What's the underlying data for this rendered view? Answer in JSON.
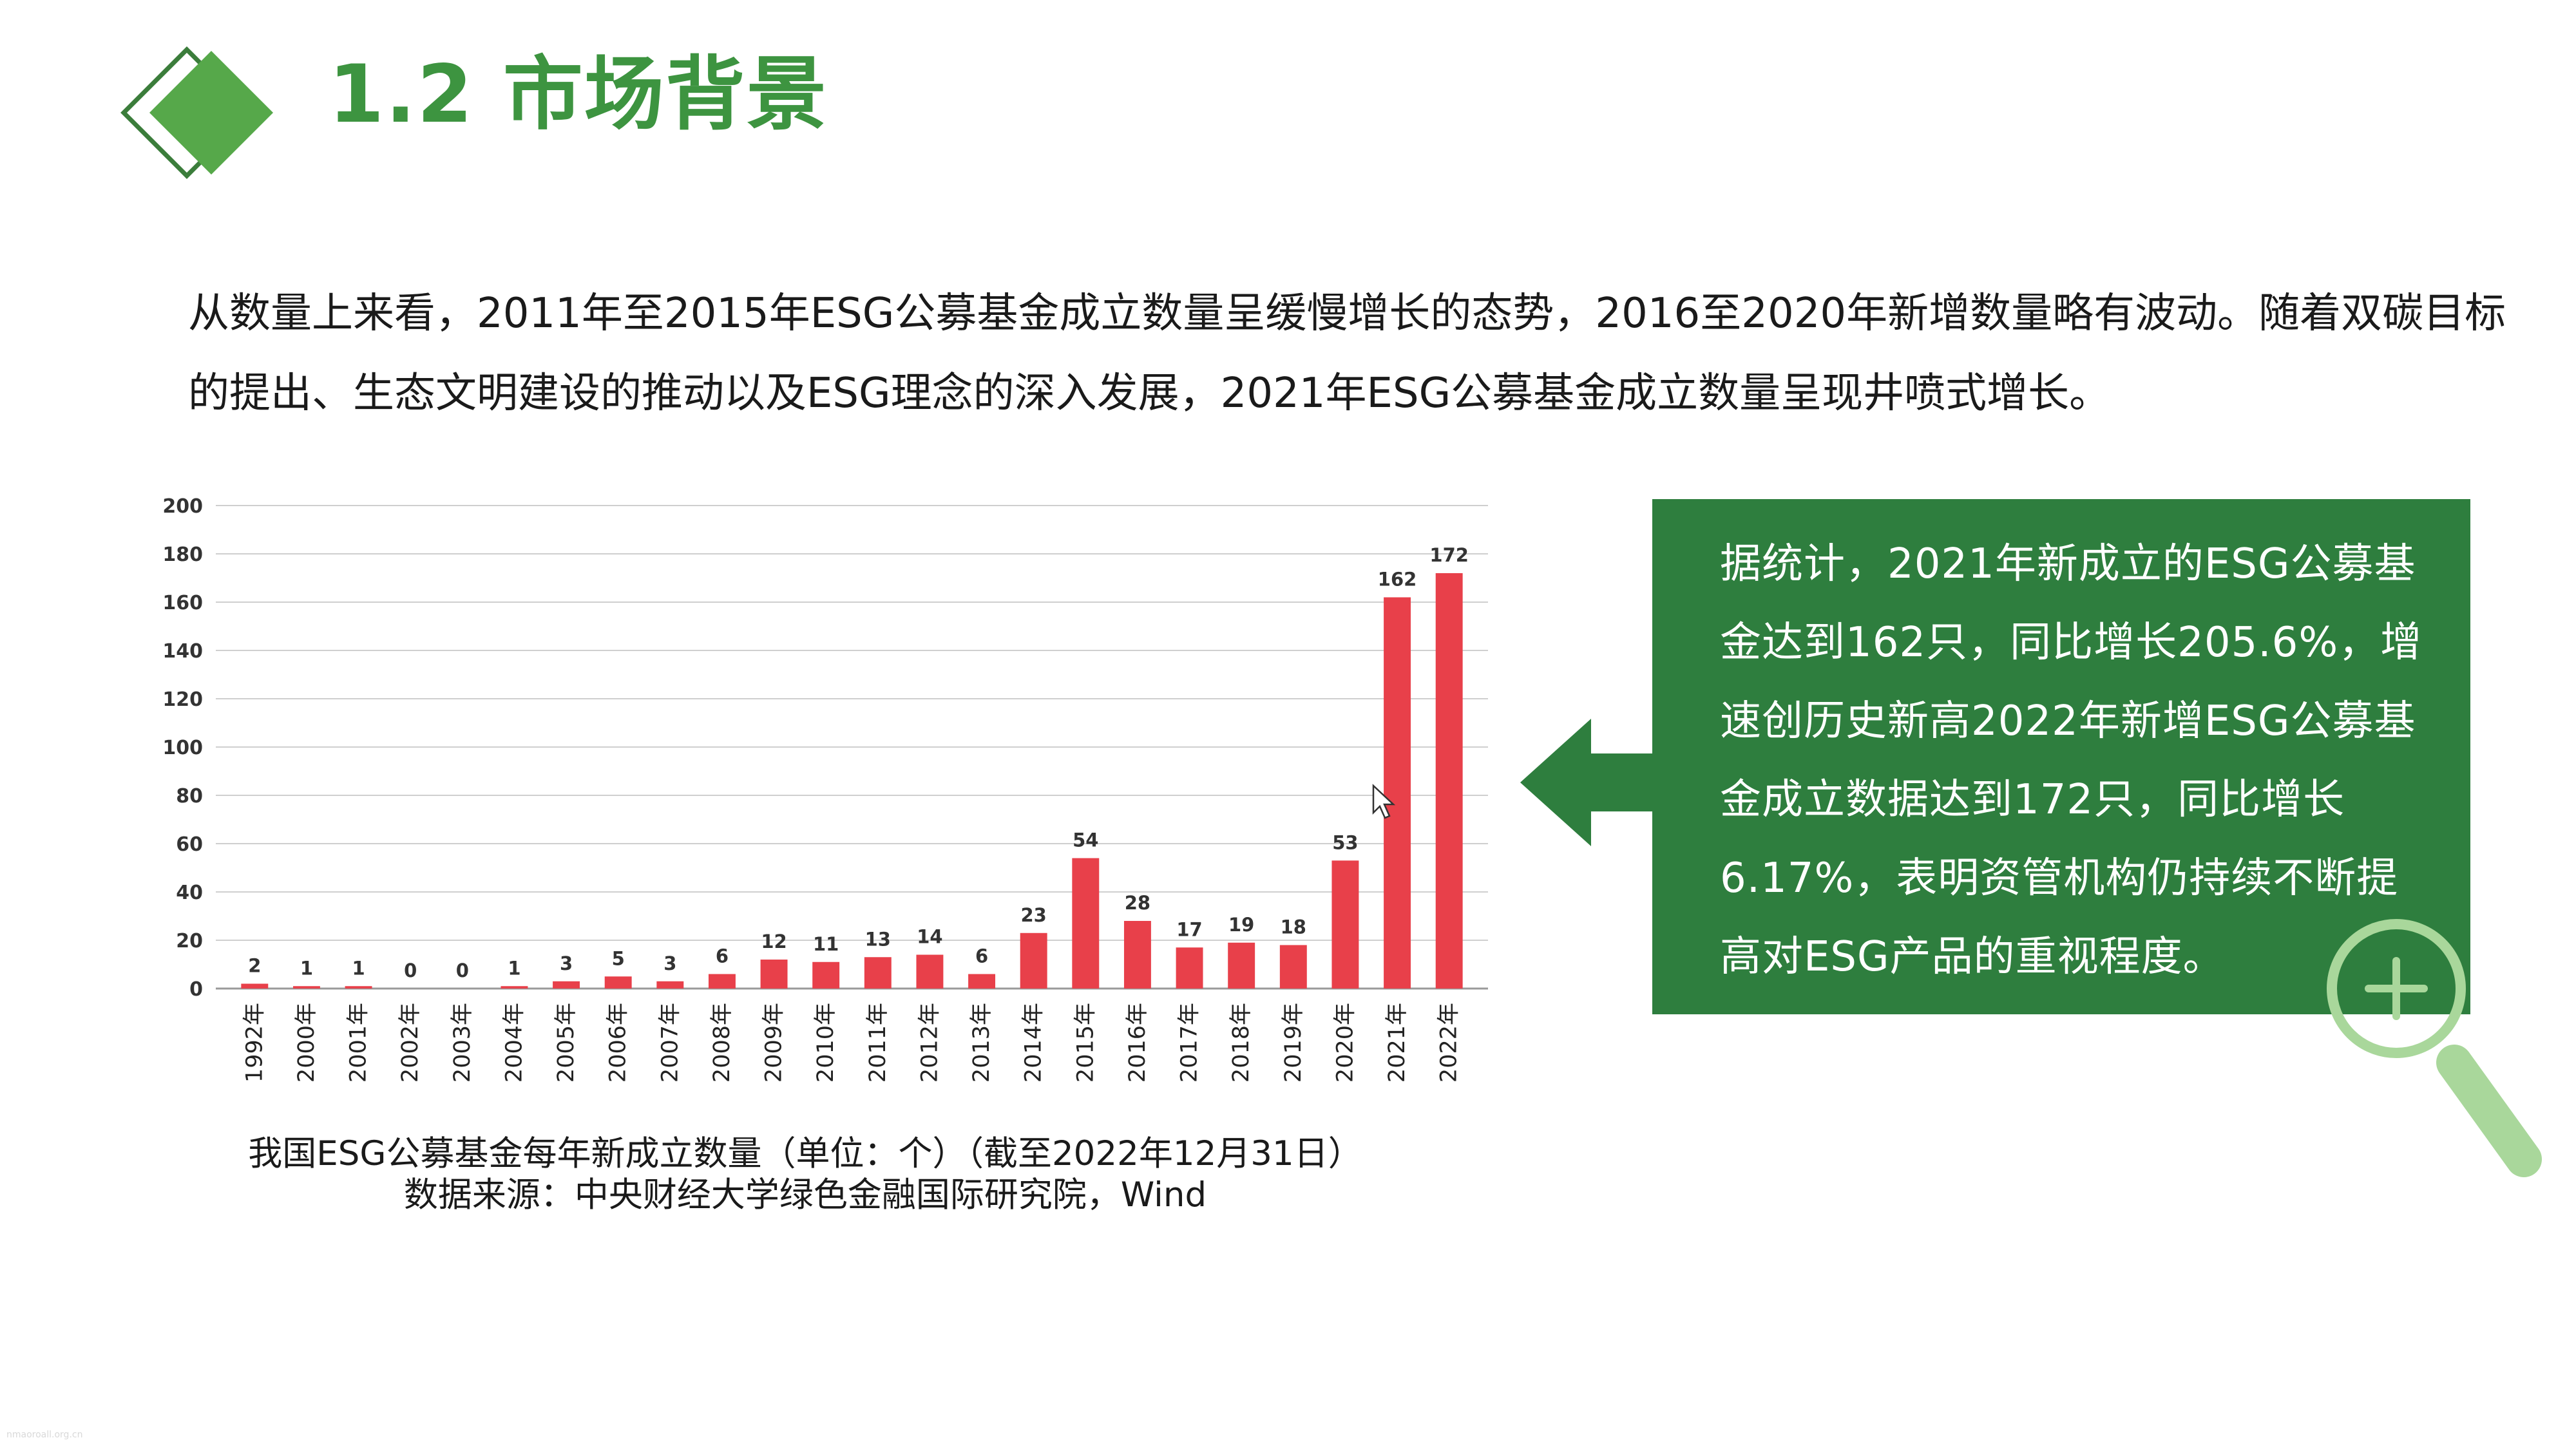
{
  "slide": {
    "title": "1.2 市场背景",
    "intro": "从数量上来看，2011年至2015年ESG公募基金成立数量呈缓慢增长的态势，2016至2020年新增数量略有波动。随着双碳目标的提出、生态文明建设的推动以及ESG理念的深入发展，2021年ESG公募基金成立数量呈现井喷式增长。",
    "caption_line1": "我国ESG公募基金每年新成立数量（单位：个）（截至2022年12月31日）",
    "caption_line2": "数据来源：中央财经大学绿色金融国际研究院，Wind",
    "callout": "据统计，2021年新成立的ESG公募基金达到162只，同比增长205.6%，增速创历史新高2022年新增ESG公募基金成立数据达到172只，同比增长6.17%，表明资管机构仍持续不断提高对ESG产品的重视程度。",
    "watermark": "nmaoroall.org.cn"
  },
  "icons": {
    "logo": "green-diamond-icon",
    "arrow": "left-arrow-icon",
    "magnifier": "magnifier-plus-icon",
    "cursor": "mouse-cursor-icon"
  },
  "colors": {
    "accent": "#3d9440",
    "callout_bg": "#2e7e3e",
    "bar": "#e8404a",
    "magnifier": "#a9d79b"
  },
  "chart_data": {
    "type": "bar",
    "categories": [
      "1992年",
      "2000年",
      "2001年",
      "2002年",
      "2003年",
      "2004年",
      "2005年",
      "2006年",
      "2007年",
      "2008年",
      "2009年",
      "2010年",
      "2011年",
      "2012年",
      "2013年",
      "2014年",
      "2015年",
      "2016年",
      "2017年",
      "2018年",
      "2019年",
      "2020年",
      "2021年",
      "2022年"
    ],
    "values": [
      2,
      1,
      1,
      0,
      0,
      1,
      3,
      5,
      3,
      6,
      12,
      11,
      13,
      14,
      6,
      23,
      54,
      28,
      17,
      19,
      18,
      53,
      162,
      172
    ],
    "yticks": [
      0,
      20,
      40,
      60,
      80,
      100,
      120,
      140,
      160,
      180,
      200
    ],
    "ylim": [
      0,
      200
    ],
    "grid": true
  }
}
